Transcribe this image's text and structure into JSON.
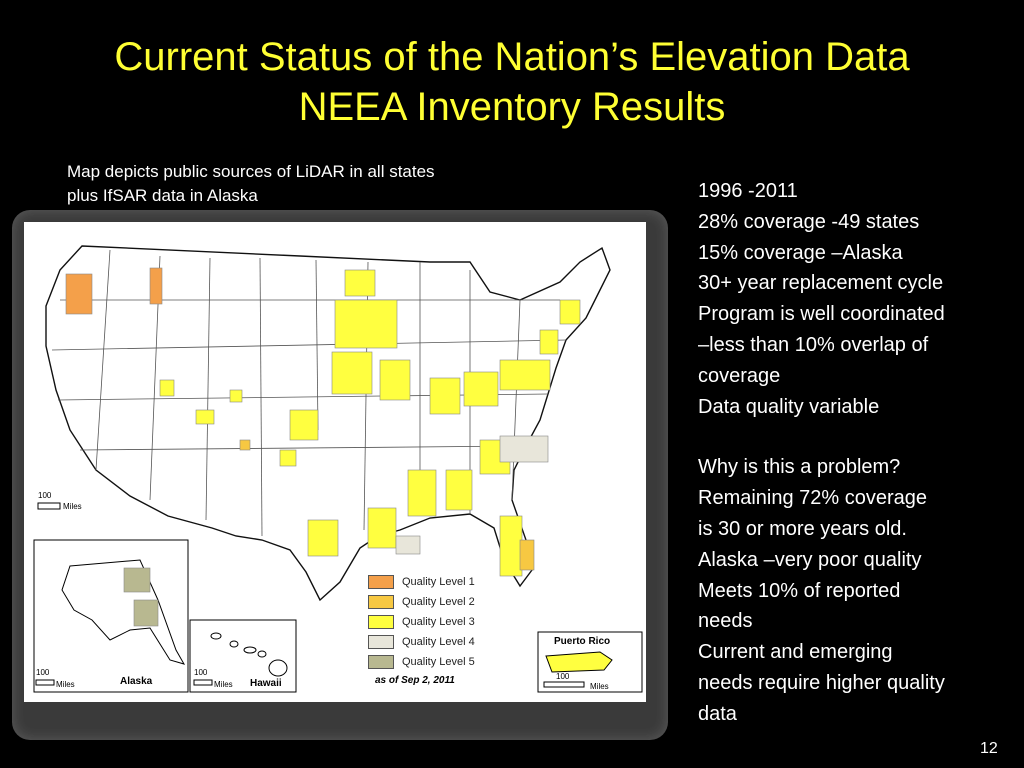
{
  "title": {
    "line1": "Current Status of the Nation’s Elevation Data",
    "line2": "NEEA Inventory Results"
  },
  "caption": {
    "line1": "Map depicts public sources of LiDAR in all states",
    "line2": "plus IfSAR data in Alaska"
  },
  "stats": [
    "1996 -2011",
    "28% coverage -49 states",
    "15% coverage –Alaska",
    "30+ year replacement cycle",
    "Program is well coordinated",
    "–less than 10% overlap of",
    "coverage",
    "Data quality variable"
  ],
  "problem": [
    "Why is this a problem?",
    "Remaining 72% coverage",
    "is 30 or more years old.",
    "Alaska –very poor quality",
    "Meets 10% of reported",
    "needs",
    "Current and emerging",
    "needs require higher quality",
    "data"
  ],
  "map": {
    "legend": [
      {
        "label": "Quality Level 1",
        "color": "#f4a04a"
      },
      {
        "label": "Quality Level 2",
        "color": "#f7c842"
      },
      {
        "label": "Quality Level 3",
        "color": "#ffff40"
      },
      {
        "label": "Quality Level 4",
        "color": "#e8e6da"
      },
      {
        "label": "Quality Level 5",
        "color": "#b8b890"
      }
    ],
    "as_of": "as of Sep 2, 2011",
    "insets": {
      "alaska": "Alaska",
      "hawaii": "Hawaii",
      "puerto_rico": "Puerto Rico"
    },
    "scale": {
      "main_value": "100",
      "unit": "Miles"
    }
  },
  "page_number": "12"
}
